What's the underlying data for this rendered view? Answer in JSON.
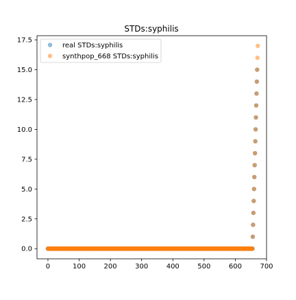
{
  "chart_data": {
    "type": "scatter",
    "title": "STDs:syphilis",
    "xlabel": "",
    "ylabel": "",
    "xlim": [
      -35,
      700
    ],
    "ylim": [
      -0.85,
      17.85
    ],
    "xticks": [
      0,
      100,
      200,
      300,
      400,
      500,
      600,
      700
    ],
    "yticks": [
      0.0,
      2.5,
      5.0,
      7.5,
      10.0,
      12.5,
      15.0,
      17.5
    ],
    "xtick_labels": [
      "0",
      "100",
      "200",
      "300",
      "400",
      "500",
      "600",
      "700"
    ],
    "ytick_labels": [
      "0.0",
      "2.5",
      "5.0",
      "7.5",
      "10.0",
      "12.5",
      "15.0",
      "17.5"
    ],
    "grid": false,
    "legend_position": "top-left",
    "zero_count": 656,
    "series": [
      {
        "name": "real STDs:syphilis",
        "color": "#1f77b4",
        "alpha": 0.5,
        "points": [
          [
            656,
            1
          ],
          [
            657,
            2
          ],
          [
            658,
            3
          ],
          [
            659,
            4
          ],
          [
            660,
            5
          ],
          [
            661,
            6
          ],
          [
            662,
            7
          ],
          [
            663,
            8
          ],
          [
            664,
            9
          ],
          [
            665,
            10
          ],
          [
            666,
            11
          ],
          [
            667,
            12
          ],
          [
            668,
            13
          ],
          [
            669,
            14
          ],
          [
            670,
            15
          ]
        ]
      },
      {
        "name": "synthpop_668 STDs:syphilis",
        "color": "#ff7f0e",
        "alpha": 0.5,
        "points": [
          [
            656,
            1
          ],
          [
            657,
            2
          ],
          [
            658,
            3
          ],
          [
            659,
            4
          ],
          [
            660,
            5
          ],
          [
            661,
            6
          ],
          [
            662,
            7
          ],
          [
            663,
            8
          ],
          [
            664,
            9
          ],
          [
            665,
            10
          ],
          [
            666,
            11
          ],
          [
            667,
            12
          ],
          [
            668,
            13
          ],
          [
            669,
            14
          ],
          [
            670,
            15
          ],
          [
            671,
            16
          ],
          [
            672,
            17
          ]
        ]
      }
    ]
  }
}
